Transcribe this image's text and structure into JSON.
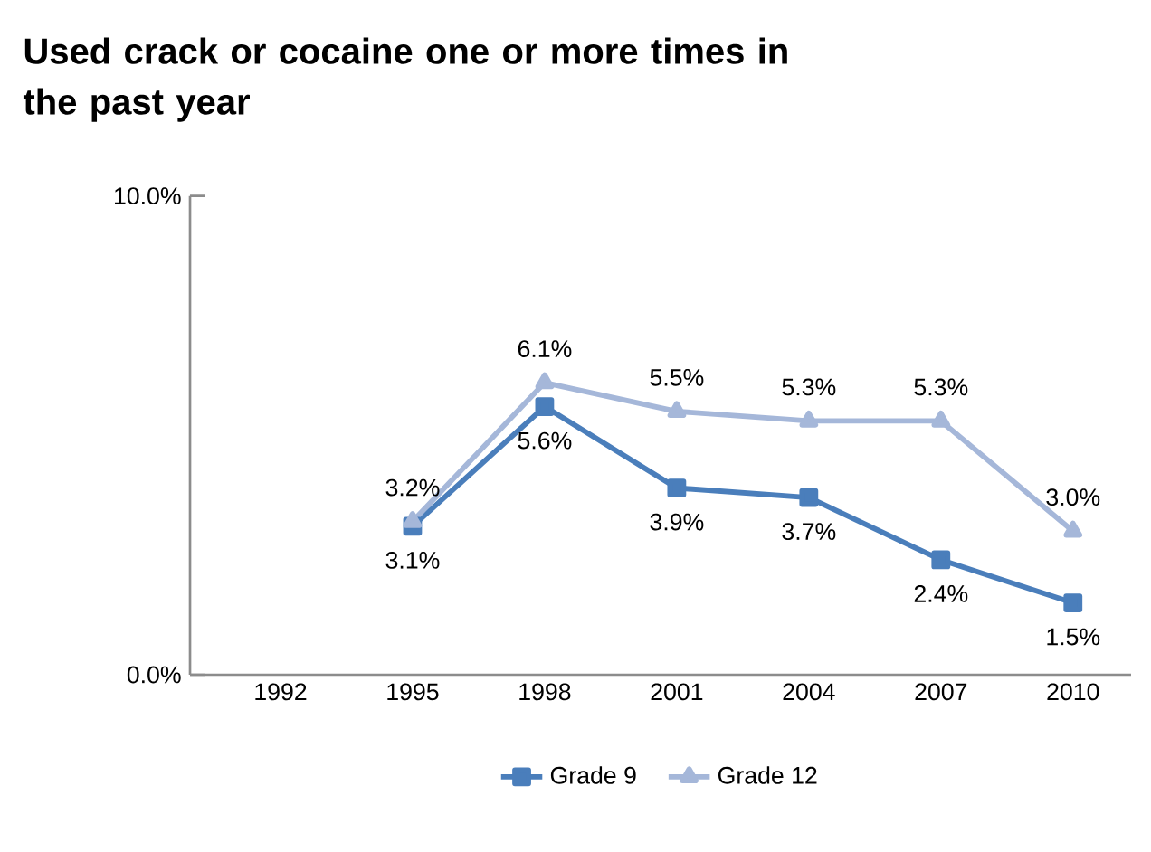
{
  "chart_data": {
    "type": "line",
    "title": "Used crack or cocaine one or more times in the past year",
    "categories": [
      "1992",
      "1995",
      "1998",
      "2001",
      "2004",
      "2007",
      "2010"
    ],
    "series": [
      {
        "name": "Grade 9",
        "color": "#4a7ebb",
        "marker": "square",
        "values": [
          null,
          3.1,
          5.6,
          3.9,
          3.7,
          2.4,
          1.5
        ],
        "value_labels": [
          null,
          "3.1%",
          "5.6%",
          "3.9%",
          "3.7%",
          "2.4%",
          "1.5%"
        ]
      },
      {
        "name": "Grade 12",
        "color": "#a5b7d9",
        "marker": "triangle",
        "values": [
          null,
          3.2,
          6.1,
          5.5,
          5.3,
          5.3,
          3.0
        ],
        "value_labels": [
          null,
          "3.2%",
          "6.1%",
          "5.5%",
          "5.3%",
          "5.3%",
          "3.0%"
        ]
      }
    ],
    "ylim": [
      0,
      10
    ],
    "yticks": [
      {
        "value": 0,
        "label": "0.0%"
      },
      {
        "value": 10,
        "label": "10.0%"
      }
    ],
    "grid": false,
    "legend": "bottom",
    "line_style": "solid"
  }
}
